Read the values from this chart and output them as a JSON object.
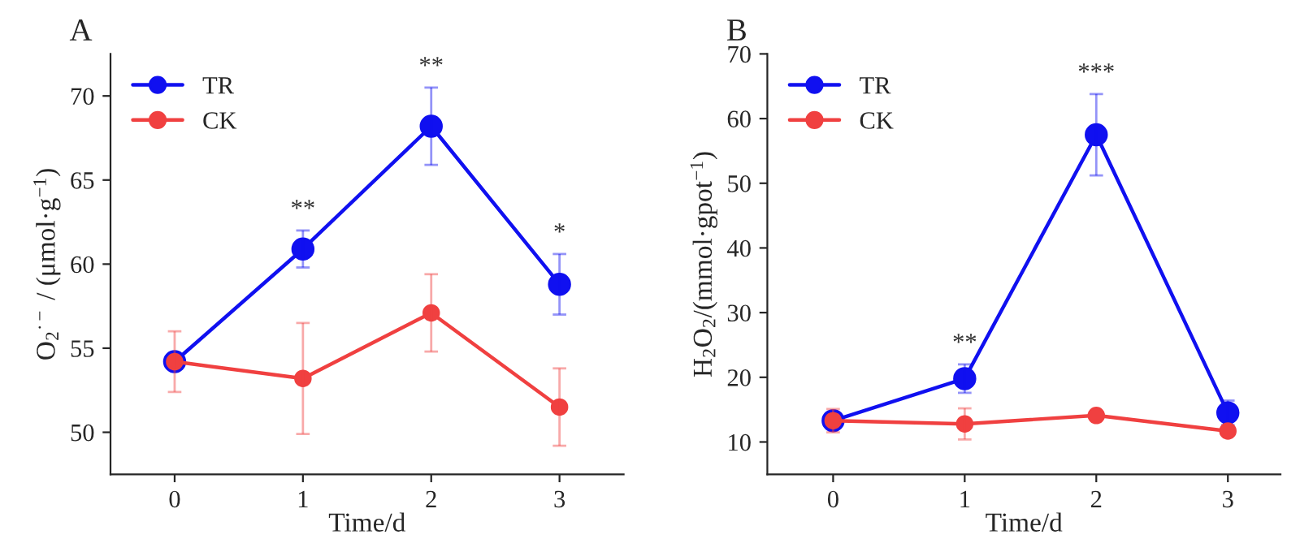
{
  "chart_data": [
    {
      "type": "line",
      "title": "A",
      "xlabel": "Time/d",
      "ylabel": "O$_{2}$$^{·−}$ / (μmol·g$^{−1}$)",
      "x": [
        0,
        1,
        2,
        3
      ],
      "xlim": [
        -0.5,
        3.5
      ],
      "xticks": [
        0,
        1,
        2,
        3
      ],
      "ylim": [
        47.5,
        72.5
      ],
      "yticks": [
        50,
        55,
        60,
        65,
        70
      ],
      "marker": "circle",
      "line_style": "solid",
      "grid": false,
      "legend": "top left",
      "series": [
        {
          "name": "TR",
          "color": "#1010f0",
          "values": [
            54.2,
            60.9,
            68.2,
            58.8
          ],
          "errors": [
            null,
            1.1,
            2.3,
            1.8
          ]
        },
        {
          "name": "CK",
          "color": "#f04040",
          "values": [
            54.2,
            53.2,
            57.1,
            51.5
          ],
          "errors": [
            1.8,
            3.3,
            2.3,
            2.3
          ]
        }
      ],
      "annotations": [
        {
          "text": "**",
          "x": 1,
          "y": 60.9
        },
        {
          "text": "**",
          "x": 2,
          "y": 68.2
        },
        {
          "text": "*",
          "x": 3,
          "y": 58.8
        }
      ]
    },
    {
      "type": "line",
      "title": "B",
      "xlabel": "Time/d",
      "ylabel": "H$_{2}$O$_{2}$/(mmol·gpot$^{−1}$)",
      "x": [
        0,
        1,
        2,
        3
      ],
      "xlim": [
        -0.5,
        3.4
      ],
      "xticks": [
        0,
        1,
        2,
        3
      ],
      "ylim": [
        5,
        70
      ],
      "yticks": [
        10,
        20,
        30,
        40,
        50,
        60,
        70
      ],
      "marker": "circle",
      "line_style": "solid",
      "grid": false,
      "legend": "top left",
      "series": [
        {
          "name": "TR",
          "color": "#1010f0",
          "values": [
            13.3,
            19.8,
            57.5,
            14.5
          ],
          "errors": [
            null,
            2.2,
            6.3,
            1.9
          ]
        },
        {
          "name": "CK",
          "color": "#f04040",
          "values": [
            13.3,
            12.8,
            14.1,
            11.7
          ],
          "errors": [
            1.8,
            2.4,
            null,
            null
          ]
        }
      ],
      "annotations": [
        {
          "text": "**",
          "x": 1,
          "y": 19.8
        },
        {
          "text": "***",
          "x": 2,
          "y": 57.5
        }
      ]
    }
  ]
}
